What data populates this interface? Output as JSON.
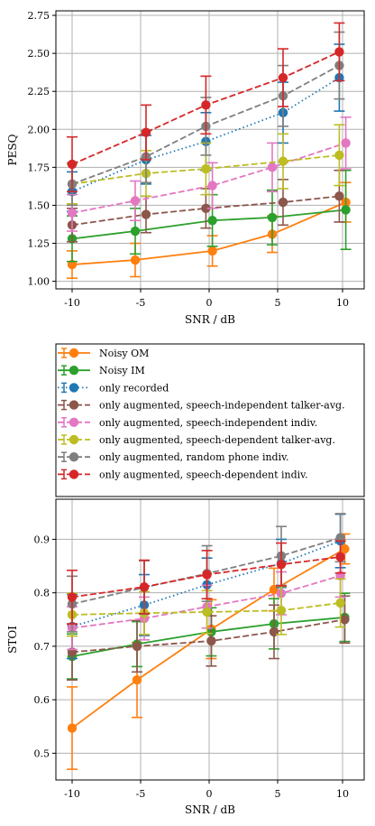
{
  "series_styles": [
    {
      "name": "Noisy OM",
      "color": "#ff7f0e",
      "dash": "solid"
    },
    {
      "name": "Noisy IM",
      "color": "#2ca02c",
      "dash": "solid"
    },
    {
      "name": "only recorded",
      "color": "#1f77b4",
      "dash": "dotted"
    },
    {
      "name": "only augmented, speech-independent talker-avg.",
      "color": "#8c564b",
      "dash": "dashed"
    },
    {
      "name": "only augmented, speech-independent indiv.",
      "color": "#e377c2",
      "dash": "dashed"
    },
    {
      "name": "only augmented, speech-dependent talker-avg.",
      "color": "#bcbd22",
      "dash": "dashed"
    },
    {
      "name": "only augmented, random phone indiv.",
      "color": "#7f7f7f",
      "dash": "dashed"
    },
    {
      "name": "only augmented, speech-dependent indiv.",
      "color": "#d62728",
      "dash": "dashed"
    }
  ],
  "legend": {
    "placement": "between-panels",
    "entries": [
      "Noisy OM",
      "Noisy IM",
      "only recorded",
      "only augmented, speech-independent talker-avg.",
      "only augmented, speech-independent indiv.",
      "only augmented, speech-dependent talker-avg.",
      "only augmented, random phone indiv.",
      "only augmented, speech-dependent indiv."
    ]
  },
  "chart_data": [
    {
      "type": "line",
      "xlabel": "SNR / dB",
      "ylabel": "PESQ",
      "categories": [
        "-10",
        "-5",
        "0",
        "5",
        "10"
      ],
      "yticks": [
        "1.00",
        "1.25",
        "1.50",
        "1.75",
        "2.00",
        "2.25",
        "2.50",
        "2.75"
      ],
      "ylim": [
        0.95,
        2.78
      ],
      "grid": true,
      "series": [
        {
          "name": "Noisy OM",
          "values": [
            1.11,
            1.14,
            1.2,
            1.31,
            1.52
          ],
          "errors": [
            0.09,
            0.11,
            0.1,
            0.12,
            0.13
          ]
        },
        {
          "name": "Noisy IM",
          "values": [
            1.28,
            1.33,
            1.4,
            1.42,
            1.47
          ],
          "errors": [
            0.15,
            0.15,
            0.17,
            0.18,
            0.26
          ]
        },
        {
          "name": "only recorded",
          "values": [
            1.59,
            1.8,
            1.92,
            2.11,
            2.34
          ],
          "errors": [
            0.13,
            0.16,
            0.19,
            0.2,
            0.22
          ]
        },
        {
          "name": "only augmented, speech-independent talker-avg.",
          "values": [
            1.37,
            1.44,
            1.48,
            1.52,
            1.56
          ],
          "errors": [
            0.11,
            0.12,
            0.13,
            0.15,
            0.17
          ]
        },
        {
          "name": "only augmented, speech-independent indiv.",
          "values": [
            1.45,
            1.53,
            1.63,
            1.75,
            1.91
          ],
          "errors": [
            0.12,
            0.13,
            0.15,
            0.16,
            0.17
          ]
        },
        {
          "name": "only augmented, speech-dependent talker-avg.",
          "values": [
            1.64,
            1.71,
            1.74,
            1.79,
            1.83
          ],
          "errors": [
            0.13,
            0.15,
            0.17,
            0.18,
            0.2
          ]
        },
        {
          "name": "only augmented, random phone indiv.",
          "values": [
            1.64,
            1.82,
            2.02,
            2.22,
            2.42
          ],
          "errors": [
            0.14,
            0.17,
            0.19,
            0.2,
            0.22
          ]
        },
        {
          "name": "only augmented, speech-dependent indiv.",
          "values": [
            1.77,
            1.98,
            2.16,
            2.34,
            2.51
          ],
          "errors": [
            0.18,
            0.18,
            0.19,
            0.19,
            0.19
          ]
        }
      ]
    },
    {
      "type": "line",
      "xlabel": "SNR / dB",
      "ylabel": "STOI",
      "categories": [
        "-10",
        "-5",
        "0",
        "5",
        "10"
      ],
      "yticks": [
        "0.5",
        "0.6",
        "0.7",
        "0.8",
        "0.9"
      ],
      "ylim": [
        0.45,
        0.975
      ],
      "grid": true,
      "series": [
        {
          "name": "Noisy OM",
          "values": [
            0.547,
            0.637,
            0.732,
            0.806,
            0.882
          ],
          "errors": [
            0.077,
            0.07,
            0.055,
            0.04,
            0.028
          ]
        },
        {
          "name": "Noisy IM",
          "values": [
            0.681,
            0.704,
            0.727,
            0.742,
            0.754
          ],
          "errors": [
            0.042,
            0.042,
            0.045,
            0.047,
            0.045
          ]
        },
        {
          "name": "only recorded",
          "values": [
            0.737,
            0.777,
            0.815,
            0.855,
            0.897
          ],
          "errors": [
            0.06,
            0.057,
            0.05,
            0.045,
            0.05
          ]
        },
        {
          "name": "only augmented, speech-independent talker-avg.",
          "values": [
            0.689,
            0.7,
            0.71,
            0.727,
            0.75
          ],
          "errors": [
            0.052,
            0.048,
            0.047,
            0.05,
            0.044
          ]
        },
        {
          "name": "only augmented, speech-independent indiv.",
          "values": [
            0.734,
            0.752,
            0.774,
            0.799,
            0.832
          ],
          "errors": [
            0.04,
            0.04,
            0.04,
            0.04,
            0.04
          ]
        },
        {
          "name": "only augmented, speech-dependent talker-avg.",
          "values": [
            0.759,
            0.762,
            0.764,
            0.767,
            0.781
          ],
          "errors": [
            0.04,
            0.04,
            0.04,
            0.045,
            0.045
          ]
        },
        {
          "name": "only augmented, random phone indiv.",
          "values": [
            0.779,
            0.81,
            0.836,
            0.869,
            0.903
          ],
          "errors": [
            0.052,
            0.05,
            0.052,
            0.055,
            0.045
          ]
        },
        {
          "name": "only augmented, speech-dependent indiv.",
          "values": [
            0.792,
            0.811,
            0.834,
            0.853,
            0.867
          ],
          "errors": [
            0.05,
            0.05,
            0.045,
            0.04,
            0.03
          ]
        }
      ]
    }
  ]
}
